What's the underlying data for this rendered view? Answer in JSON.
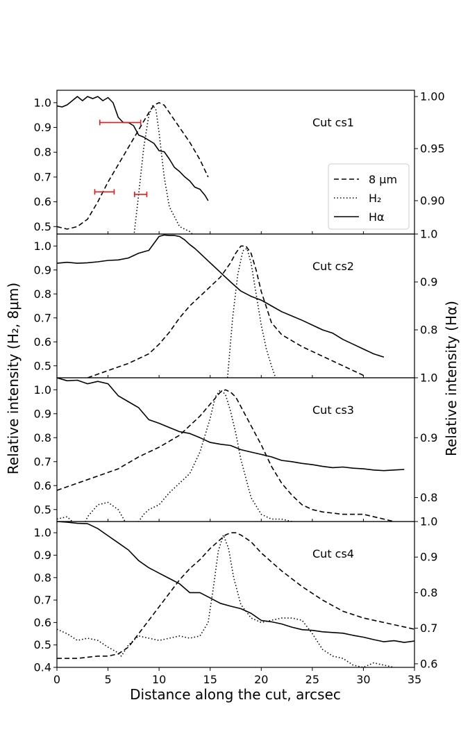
{
  "chart_data": {
    "type": "line",
    "xlabel": "Distance along the cut, arcsec",
    "ylabel_left": "Relative intensity (H₂, 8μm)",
    "ylabel_right": "Relative intensity (Hα)",
    "xlim": [
      0,
      35
    ],
    "x_ticks": [
      0,
      5,
      10,
      15,
      20,
      25,
      30,
      35
    ],
    "x_tick_labels": [
      "0",
      "5",
      "10",
      "15",
      "20",
      "25",
      "30",
      "35"
    ],
    "legend": {
      "placement": "right",
      "entries": [
        {
          "label": "8 μm",
          "style": "dashed"
        },
        {
          "label": "H₂",
          "style": "dotted"
        },
        {
          "label": "Hα",
          "style": "solid"
        }
      ]
    },
    "colors": {
      "line": "#000000",
      "errorbar": "#e8191a"
    },
    "panels": [
      {
        "label": "Cut cs1",
        "left_ylim": [
          0.47,
          1.05
        ],
        "left_ticks": [
          0.5,
          0.6,
          0.7,
          0.8,
          0.9,
          1.0
        ],
        "left_tick_labels": [
          "0.5",
          "0.6",
          "0.7",
          "0.8",
          "0.9",
          "1.0"
        ],
        "right_ylim": [
          0.868,
          1.006
        ],
        "right_ticks": [
          0.9,
          0.95,
          1.0
        ],
        "right_tick_labels": [
          "0.90",
          "0.95",
          "1.00"
        ],
        "series": [
          {
            "name": "8 μm",
            "style": "dashed",
            "axis": "left",
            "x": [
              0,
              1,
              2,
              3,
              4,
              5,
              6,
              7,
              8,
              9,
              9.5,
              10,
              10.5,
              11,
              12,
              13,
              14,
              14.8
            ],
            "y": [
              0.5,
              0.49,
              0.5,
              0.53,
              0.6,
              0.68,
              0.75,
              0.82,
              0.89,
              0.96,
              0.99,
              1.0,
              0.99,
              0.96,
              0.9,
              0.84,
              0.77,
              0.7
            ]
          },
          {
            "name": "H₂",
            "style": "dotted",
            "axis": "left",
            "x": [
              7.5,
              8.0,
              8.5,
              9.0,
              9.4,
              9.7,
              10.0,
              10.5,
              11.0,
              12.0,
              13.0,
              13.5
            ],
            "y": [
              0.45,
              0.63,
              0.82,
              0.95,
              0.99,
              0.97,
              0.88,
              0.7,
              0.58,
              0.5,
              0.48,
              0.46
            ]
          },
          {
            "name": "Hα",
            "style": "solid",
            "axis": "right",
            "x": [
              0,
              0.5,
              1,
              1.5,
              2,
              2.5,
              3,
              3.5,
              4,
              4.5,
              5,
              5.5,
              6,
              6.5,
              7,
              7.5,
              8,
              8.5,
              9,
              9.5,
              10,
              10.5,
              11,
              11.5,
              12,
              12.5,
              13,
              13.5,
              14,
              14.5,
              14.8
            ],
            "y": [
              0.991,
              0.99,
              0.992,
              0.996,
              1.0,
              0.996,
              1.0,
              0.998,
              1.0,
              0.996,
              0.999,
              0.994,
              0.98,
              0.975,
              0.975,
              0.972,
              0.963,
              0.961,
              0.958,
              0.955,
              0.948,
              0.947,
              0.94,
              0.932,
              0.928,
              0.923,
              0.919,
              0.913,
              0.911,
              0.905,
              0.9
            ]
          }
        ],
        "errorbars": [
          {
            "x_from": 4.2,
            "x_to": 8.2,
            "y": 0.92
          },
          {
            "x_from": 3.7,
            "x_to": 5.6,
            "y": 0.64
          },
          {
            "x_from": 7.6,
            "x_to": 8.8,
            "y": 0.63
          }
        ]
      },
      {
        "label": "Cut cs2",
        "left_ylim": [
          0.45,
          1.05
        ],
        "left_ticks": [
          0.5,
          0.6,
          0.7,
          0.8,
          0.9,
          1.0
        ],
        "left_tick_labels": [
          "0.5",
          "0.6",
          "0.7",
          "0.8",
          "0.9",
          "1.0"
        ],
        "right_ylim": [
          0.7,
          1.0
        ],
        "right_ticks": [
          0.8,
          0.9,
          1.0
        ],
        "right_tick_labels": [
          "0.8",
          "0.9",
          "1.0"
        ],
        "series": [
          {
            "name": "8 μm",
            "style": "dashed",
            "axis": "left",
            "x": [
              3,
              5,
              7,
              9,
              10,
              11,
              12,
              13,
              14,
              15,
              16,
              17,
              17.5,
              18,
              18.5,
              19,
              19.5,
              20,
              21,
              22,
              24,
              26,
              28,
              30
            ],
            "y": [
              0.45,
              0.48,
              0.51,
              0.55,
              0.59,
              0.64,
              0.7,
              0.75,
              0.79,
              0.83,
              0.87,
              0.93,
              0.97,
              1.0,
              1.0,
              0.97,
              0.9,
              0.81,
              0.68,
              0.63,
              0.58,
              0.54,
              0.5,
              0.46
            ]
          },
          {
            "name": "H₂",
            "style": "dotted",
            "axis": "left",
            "x": [
              16.7,
              17.2,
              17.7,
              18.2,
              18.6,
              19.0,
              19.5,
              20.0,
              20.5,
              21.0,
              21.4
            ],
            "y": [
              0.45,
              0.7,
              0.88,
              0.98,
              0.99,
              0.93,
              0.8,
              0.67,
              0.57,
              0.5,
              0.45
            ]
          },
          {
            "name": "Hα",
            "style": "solid",
            "axis": "right",
            "x": [
              0,
              1,
              2,
              3,
              4,
              5,
              6,
              7,
              8,
              9,
              10,
              10.5,
              11,
              11.5,
              12,
              12.5,
              13,
              13.5,
              14,
              15,
              16,
              17,
              18,
              19,
              20,
              21,
              22,
              23,
              24,
              25,
              26,
              27,
              28,
              29,
              30,
              31,
              32
            ],
            "y": [
              0.939,
              0.941,
              0.939,
              0.94,
              0.942,
              0.945,
              0.946,
              0.95,
              0.96,
              0.966,
              0.995,
              0.998,
              0.997,
              0.997,
              0.995,
              0.988,
              0.978,
              0.97,
              0.96,
              0.94,
              0.92,
              0.9,
              0.881,
              0.87,
              0.862,
              0.85,
              0.838,
              0.829,
              0.82,
              0.81,
              0.8,
              0.793,
              0.78,
              0.77,
              0.76,
              0.75,
              0.743
            ]
          }
        ]
      },
      {
        "label": "Cut cs3",
        "left_ylim": [
          0.45,
          1.05
        ],
        "left_ticks": [
          0.5,
          0.6,
          0.7,
          0.8,
          0.9,
          1.0
        ],
        "left_tick_labels": [
          "0.5",
          "0.6",
          "0.7",
          "0.8",
          "0.9",
          "1.0"
        ],
        "right_ylim": [
          0.76,
          1.0
        ],
        "right_ticks": [
          0.8,
          0.9,
          1.0
        ],
        "right_tick_labels": [
          "0.8",
          "0.9",
          "1.0"
        ],
        "series": [
          {
            "name": "8 μm",
            "style": "dashed",
            "axis": "left",
            "x": [
              0,
              2,
              4,
              6,
              8,
              10,
              12,
              14,
              15,
              16,
              16.5,
              17,
              17.5,
              18,
              19,
              20,
              21,
              22,
              23,
              24,
              25,
              26,
              28,
              30,
              32,
              34
            ],
            "y": [
              0.58,
              0.61,
              0.64,
              0.67,
              0.72,
              0.76,
              0.81,
              0.89,
              0.94,
              0.99,
              1.0,
              0.99,
              0.97,
              0.93,
              0.85,
              0.77,
              0.68,
              0.61,
              0.56,
              0.52,
              0.5,
              0.49,
              0.48,
              0.48,
              0.46,
              0.44
            ]
          },
          {
            "name": "H₂",
            "style": "dotted",
            "axis": "left",
            "x": [
              0,
              1,
              1.5,
              2.5,
              3,
              4,
              5,
              6,
              6.8,
              7.5,
              8,
              8.5,
              9,
              10,
              11,
              12,
              13,
              14,
              15,
              15.5,
              16,
              16.5,
              17,
              17.5,
              18,
              19,
              20,
              21,
              22,
              23
            ],
            "y": [
              0.46,
              0.47,
              0.45,
              0.42,
              0.47,
              0.52,
              0.53,
              0.5,
              0.44,
              0.41,
              0.45,
              0.48,
              0.5,
              0.52,
              0.57,
              0.61,
              0.65,
              0.74,
              0.88,
              0.97,
              1.0,
              0.98,
              0.91,
              0.82,
              0.71,
              0.55,
              0.48,
              0.46,
              0.46,
              0.45
            ]
          },
          {
            "name": "Hα",
            "style": "solid",
            "axis": "right",
            "x": [
              0,
              1,
              2,
              3,
              4,
              5,
              6,
              7,
              8,
              9,
              10,
              11,
              12,
              13,
              14,
              15,
              16,
              17,
              18,
              19,
              20,
              21,
              22,
              23,
              24,
              25,
              26,
              27,
              28,
              29,
              30,
              31,
              32,
              33,
              34
            ],
            "y": [
              1.0,
              0.995,
              0.996,
              0.99,
              0.994,
              0.99,
              0.97,
              0.96,
              0.95,
              0.93,
              0.924,
              0.917,
              0.91,
              0.907,
              0.9,
              0.892,
              0.889,
              0.887,
              0.88,
              0.876,
              0.872,
              0.868,
              0.862,
              0.86,
              0.857,
              0.855,
              0.852,
              0.85,
              0.851,
              0.849,
              0.848,
              0.846,
              0.845,
              0.846,
              0.847
            ]
          }
        ]
      },
      {
        "label": "Cut cs4",
        "left_ylim": [
          0.4,
          1.05
        ],
        "left_ticks": [
          0.4,
          0.5,
          0.6,
          0.7,
          0.8,
          0.9,
          1.0
        ],
        "left_tick_labels": [
          "0.4",
          "0.5",
          "0.6",
          "0.7",
          "0.8",
          "0.9",
          "1.0"
        ],
        "right_ylim": [
          0.59,
          1.0
        ],
        "right_ticks": [
          0.6,
          0.7,
          0.8,
          0.9,
          1.0
        ],
        "right_tick_labels": [
          "0.6",
          "0.7",
          "0.8",
          "0.9",
          "1.0"
        ],
        "series": [
          {
            "name": "8 μm",
            "style": "dashed",
            "axis": "left",
            "x": [
              0,
              2,
              4,
              5,
              6,
              7,
              8,
              9,
              10,
              11,
              12,
              13,
              14,
              15,
              16,
              16.5,
              17,
              17.5,
              18,
              19,
              20,
              21,
              22,
              24,
              26,
              28,
              30,
              32,
              34,
              35
            ],
            "y": [
              0.44,
              0.44,
              0.45,
              0.45,
              0.46,
              0.49,
              0.55,
              0.61,
              0.67,
              0.73,
              0.79,
              0.84,
              0.88,
              0.93,
              0.97,
              0.99,
              1.0,
              1.0,
              0.99,
              0.96,
              0.91,
              0.87,
              0.83,
              0.76,
              0.7,
              0.65,
              0.62,
              0.6,
              0.58,
              0.57
            ]
          },
          {
            "name": "H₂",
            "style": "dotted",
            "axis": "left",
            "x": [
              0,
              1,
              2,
              3,
              4,
              5,
              5.8,
              6.3,
              7,
              8,
              9,
              10,
              11,
              12,
              13,
              14,
              14.8,
              15.3,
              15.8,
              16.3,
              16.8,
              17.3,
              18,
              19,
              20,
              21,
              22,
              23,
              24,
              25,
              26,
              27,
              28,
              29,
              30,
              31,
              32,
              33
            ],
            "y": [
              0.57,
              0.55,
              0.52,
              0.53,
              0.52,
              0.49,
              0.47,
              0.45,
              0.5,
              0.54,
              0.53,
              0.52,
              0.53,
              0.54,
              0.53,
              0.54,
              0.6,
              0.75,
              0.92,
              0.99,
              0.93,
              0.8,
              0.68,
              0.62,
              0.6,
              0.61,
              0.62,
              0.62,
              0.61,
              0.55,
              0.48,
              0.45,
              0.44,
              0.41,
              0.4,
              0.42,
              0.41,
              0.4
            ]
          },
          {
            "name": "Hα",
            "style": "solid",
            "axis": "right",
            "x": [
              0,
              1,
              2,
              3,
              4,
              5,
              6,
              7,
              8,
              9,
              10,
              11,
              12,
              13,
              14,
              15,
              16,
              17,
              18,
              19,
              20,
              21,
              22,
              23,
              24,
              25,
              26,
              27,
              28,
              29,
              30,
              31,
              32,
              33,
              34,
              35
            ],
            "y": [
              1.0,
              0.998,
              0.995,
              0.994,
              0.98,
              0.96,
              0.94,
              0.92,
              0.89,
              0.87,
              0.855,
              0.84,
              0.825,
              0.8,
              0.8,
              0.785,
              0.77,
              0.762,
              0.755,
              0.742,
              0.722,
              0.718,
              0.712,
              0.703,
              0.696,
              0.694,
              0.69,
              0.688,
              0.686,
              0.68,
              0.675,
              0.668,
              0.662,
              0.665,
              0.66,
              0.664
            ]
          }
        ]
      }
    ]
  }
}
